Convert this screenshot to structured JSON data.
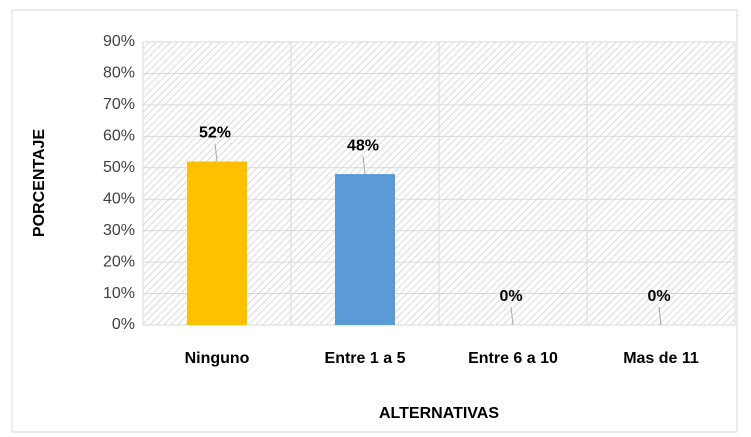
{
  "chart_data": {
    "type": "bar",
    "categories": [
      "Ninguno",
      "Entre 1 a 5",
      "Entre 6 a 10",
      "Mas de 11"
    ],
    "values": [
      52,
      48,
      0,
      0
    ],
    "value_labels": [
      "52%",
      "48%",
      "0%",
      "0%"
    ],
    "colors": [
      "#FFC000",
      "#5B9BD5",
      "#A5A5A5",
      "#4472C4"
    ],
    "x_label": "ALTERNATIVAS",
    "y_label": "PORCENTAJE",
    "ylim": [
      0,
      90
    ],
    "yticks": [
      {
        "value": 0,
        "label": "0%"
      },
      {
        "value": 10,
        "label": "10%"
      },
      {
        "value": 20,
        "label": "20%"
      },
      {
        "value": 30,
        "label": "30%"
      },
      {
        "value": 40,
        "label": "40%"
      },
      {
        "value": 50,
        "label": "50%"
      },
      {
        "value": 60,
        "label": "60%"
      },
      {
        "value": 70,
        "label": "70%"
      },
      {
        "value": 80,
        "label": "80%"
      },
      {
        "value": 90,
        "label": "90%"
      }
    ],
    "grid": true
  }
}
